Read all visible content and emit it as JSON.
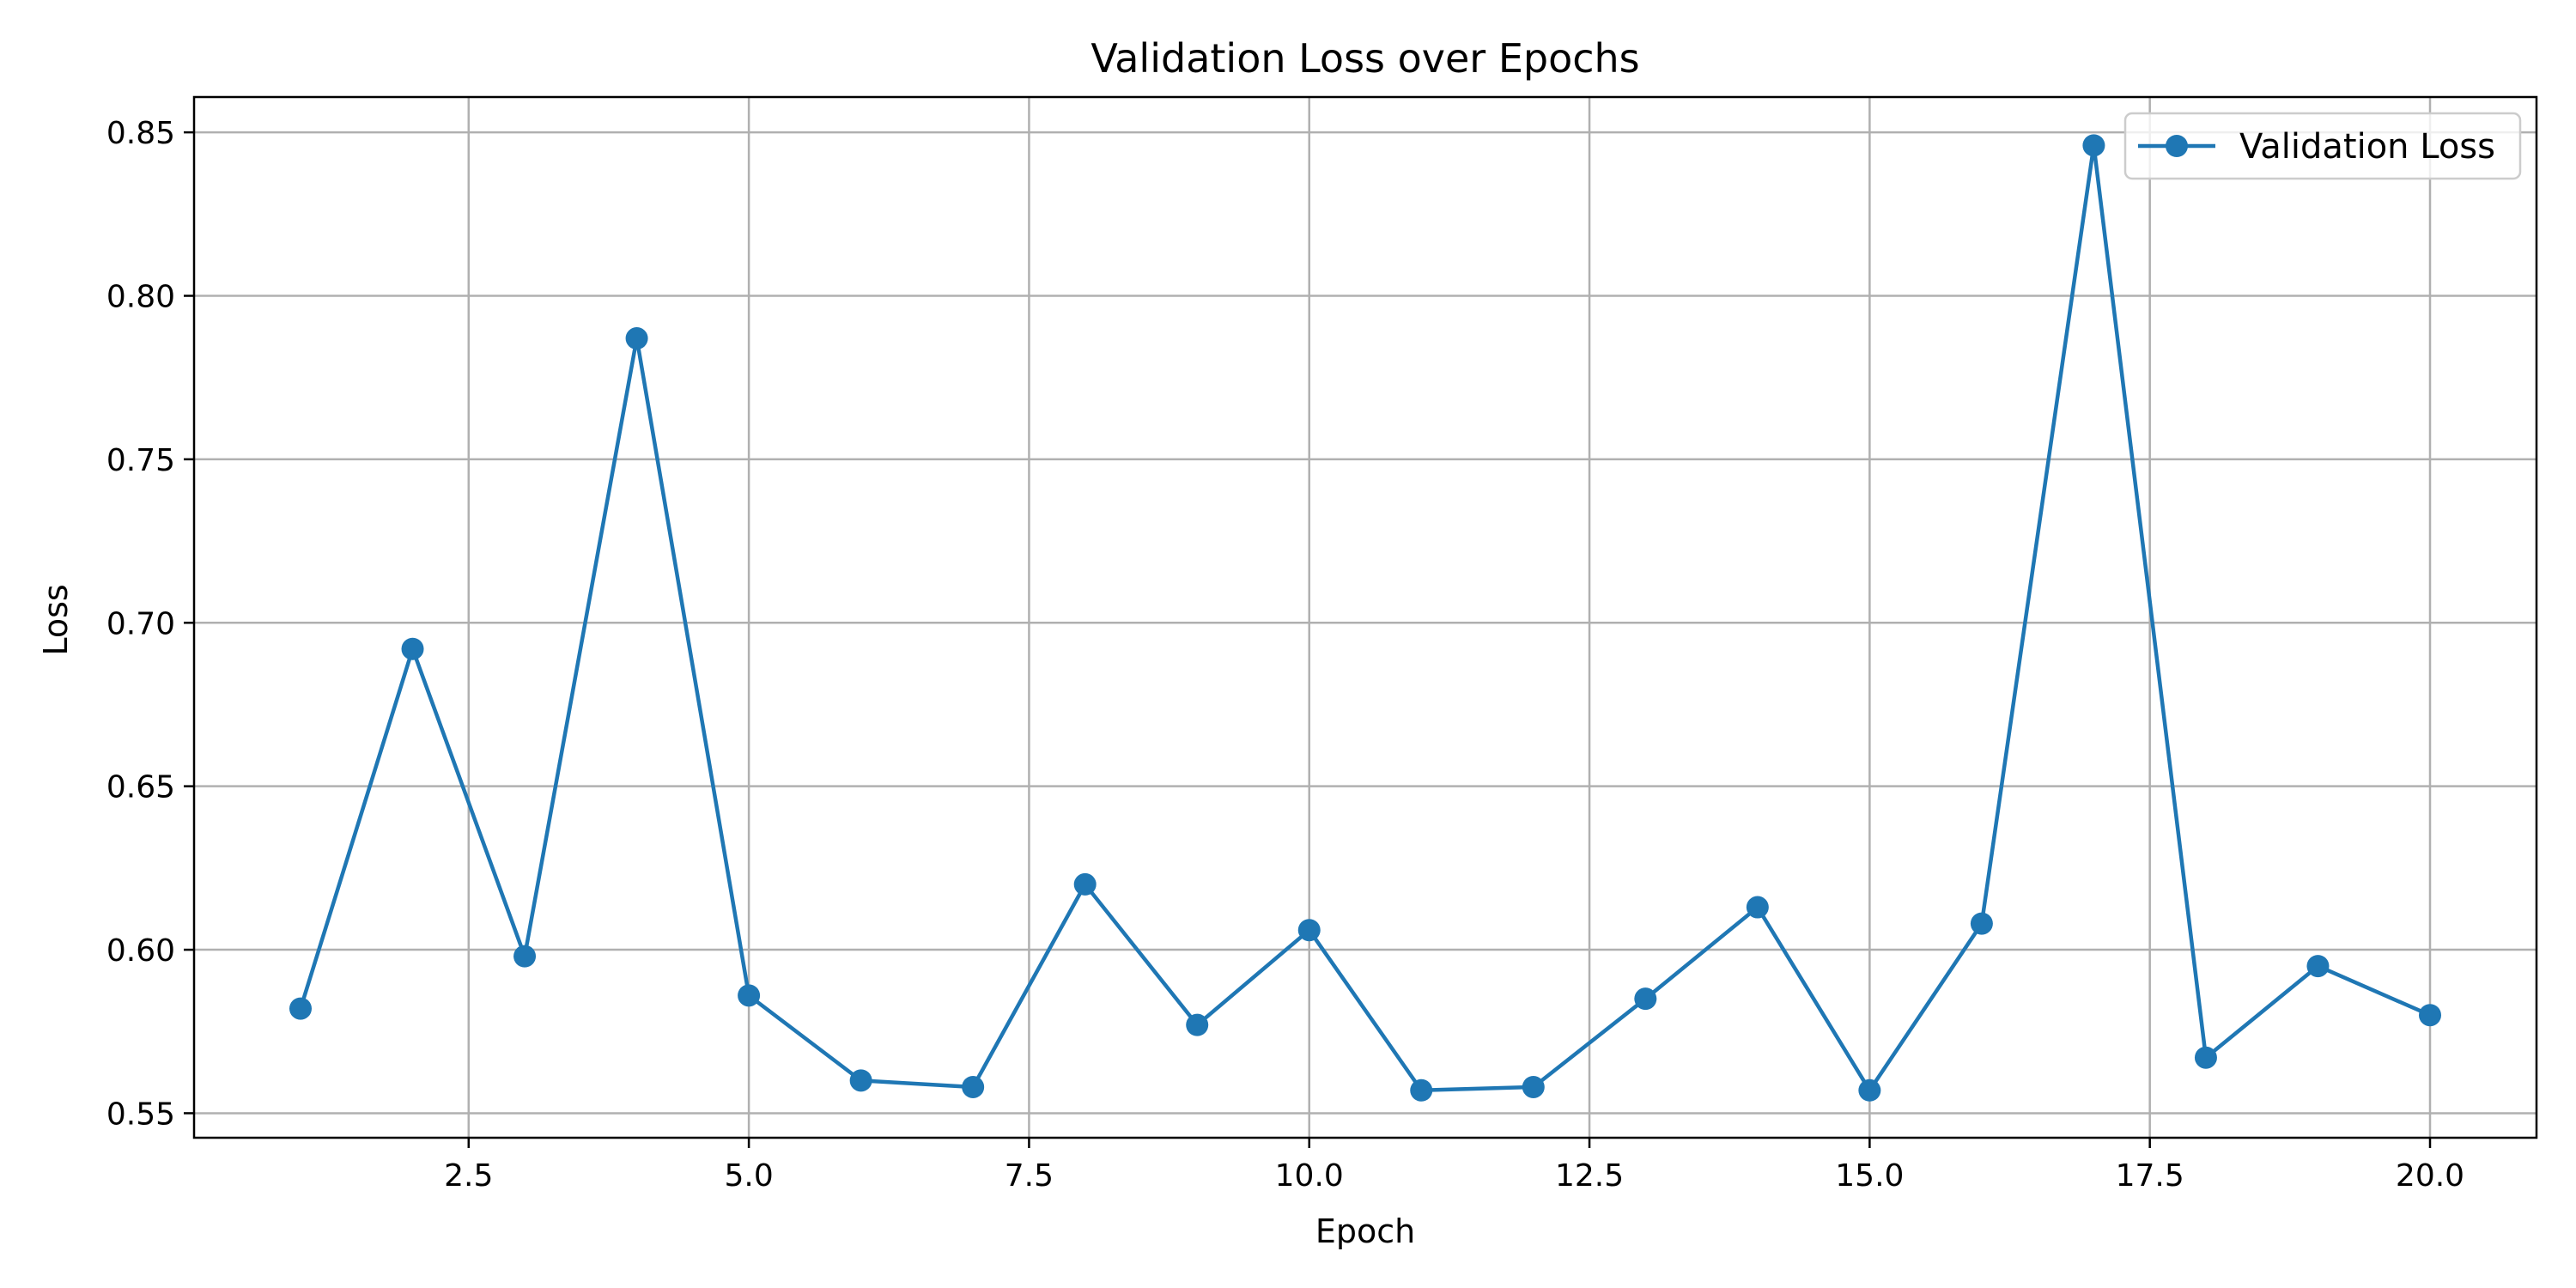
{
  "chart_data": {
    "type": "line",
    "title": "Validation Loss over Epochs",
    "xlabel": "Epoch",
    "ylabel": "Loss",
    "xlim": [
      0.05,
      20.95
    ],
    "ylim": [
      0.5425,
      0.8608
    ],
    "xticks": [
      2.5,
      5.0,
      7.5,
      10.0,
      12.5,
      15.0,
      17.5,
      20.0
    ],
    "xtick_labels": [
      "2.5",
      "5.0",
      "7.5",
      "10.0",
      "12.5",
      "15.0",
      "17.5",
      "20.0"
    ],
    "yticks": [
      0.55,
      0.6,
      0.65,
      0.7,
      0.75,
      0.8,
      0.85
    ],
    "ytick_labels": [
      "0.55",
      "0.60",
      "0.65",
      "0.70",
      "0.75",
      "0.80",
      "0.85"
    ],
    "grid": true,
    "legend_position": "top-right",
    "series": [
      {
        "name": "Validation Loss",
        "color": "#1f77b4",
        "marker": "circle",
        "x": [
          1,
          2,
          3,
          4,
          5,
          6,
          7,
          8,
          9,
          10,
          11,
          12,
          13,
          14,
          15,
          16,
          17,
          18,
          19,
          20
        ],
        "y": [
          0.582,
          0.692,
          0.598,
          0.787,
          0.586,
          0.56,
          0.558,
          0.62,
          0.577,
          0.606,
          0.557,
          0.558,
          0.585,
          0.613,
          0.557,
          0.608,
          0.846,
          0.567,
          0.595,
          0.58
        ]
      }
    ]
  }
}
